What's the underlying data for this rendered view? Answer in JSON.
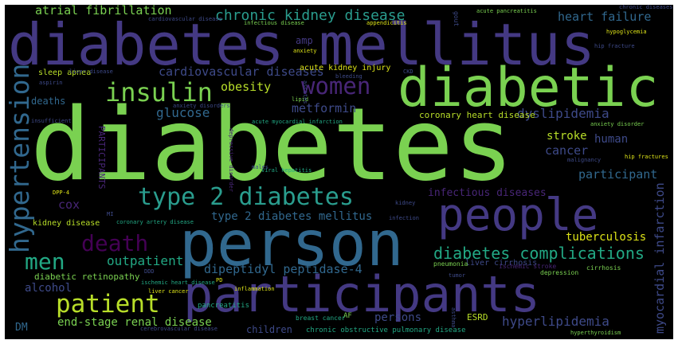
{
  "title": "Word cloud",
  "palette": {
    "background": "#000000",
    "green": "#7ad151",
    "lime": "#b8de29",
    "teal": "#2a9d8e",
    "cyan": "#22a884",
    "blue": "#31688e",
    "steel": "#3e4a89",
    "indigo": "#443983",
    "purple": "#482677",
    "deep": "#440154",
    "yellow": "#dde318"
  },
  "words": [
    "diabetes",
    "diabetes mellitus",
    "diabetic",
    "person",
    "participants",
    "people",
    "type 2 diabetes",
    "hypertension",
    "insulin",
    "women",
    "patient",
    "men",
    "death",
    "diabetes complications",
    "chronic kidney disease",
    "atrial fibrillation",
    "cardiovascular diseases",
    "heart failure",
    "glucose",
    "obesity",
    "metformin",
    "dyslipidemia",
    "coronary heart disease",
    "stroke",
    "cancer",
    "human",
    "participant",
    "infectious diseases",
    "type 2 diabetes mellitus",
    "cox",
    "tuberculosis",
    "outpatient",
    "dipeptidyl peptidase-4",
    "myocardial infarction",
    "hyperlipidemia",
    "persons",
    "end-stage renal disease",
    "alcohol",
    "diabetic retinopathy",
    "DM",
    "children",
    "chronic obstructive pulmonary disease",
    "deaths",
    "amp",
    "sleep apnea",
    "acute kidney injury",
    "PARTICIPANTS",
    "kidney disease",
    "pancreatitis",
    "AF",
    "breast cancer",
    "ESRD",
    "liver cirrhosis",
    "pneumonia",
    "depression",
    "cirrhosis",
    "ischemic heart disease",
    "inflammation",
    "liver cancer",
    "cerebrovascular disease",
    "coronary artery disease",
    "hip fractures",
    "hip fracture",
    "hypoglycemia",
    "acute pancreatitis",
    "chronic diseases",
    "gout",
    "appendicitis",
    "infectious disease",
    "cardiovascular disease",
    "anxiety",
    "bleeding",
    "lipid",
    "anxiety disorders",
    "acute myocardial infarction",
    "insufficient",
    "viral hepatitis",
    "malignancy",
    "DPP-4",
    "tumor",
    "PD",
    "DDD",
    "hyperthyroidism",
    "anxiety disorder",
    "infection",
    "ischemic stroke",
    "asthma",
    "ascites",
    "aspirin",
    "CKD",
    "depressive disorder",
    "males",
    "MI",
    "kidney",
    "liver disease"
  ]
}
